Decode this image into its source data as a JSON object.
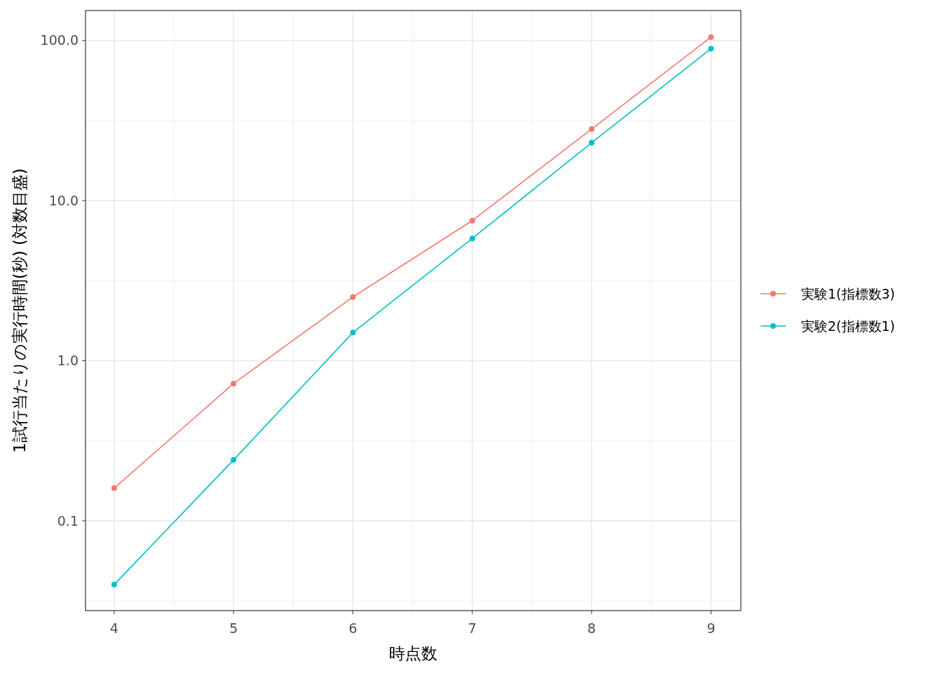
{
  "chart_data": {
    "type": "line",
    "xlabel": "時点数",
    "ylabel": "1試行当たりの実行時間(秒) (対数目盛)",
    "x": [
      4,
      5,
      6,
      7,
      8,
      9
    ],
    "series": [
      {
        "name": "実験1(指標数3)",
        "color": "#f8766d",
        "values": [
          0.16,
          0.72,
          2.5,
          7.5,
          28,
          105
        ]
      },
      {
        "name": "実験2(指標数1)",
        "color": "#00bfc4",
        "values": [
          0.04,
          0.24,
          1.5,
          5.8,
          23,
          89
        ]
      }
    ],
    "xlim": [
      3.76,
      9.25
    ],
    "ylim": [
      0.0275,
      154
    ],
    "xticks": [
      4,
      5,
      6,
      7,
      8,
      9
    ],
    "yticks": [
      {
        "value": 0.1,
        "label": "0.1"
      },
      {
        "value": 1,
        "label": "1.0"
      },
      {
        "value": 10,
        "label": "10.0"
      },
      {
        "value": 100,
        "label": "100.0"
      }
    ],
    "log": "y",
    "grid": true,
    "legend": "right",
    "marker": "circle",
    "line_style": "solid"
  }
}
